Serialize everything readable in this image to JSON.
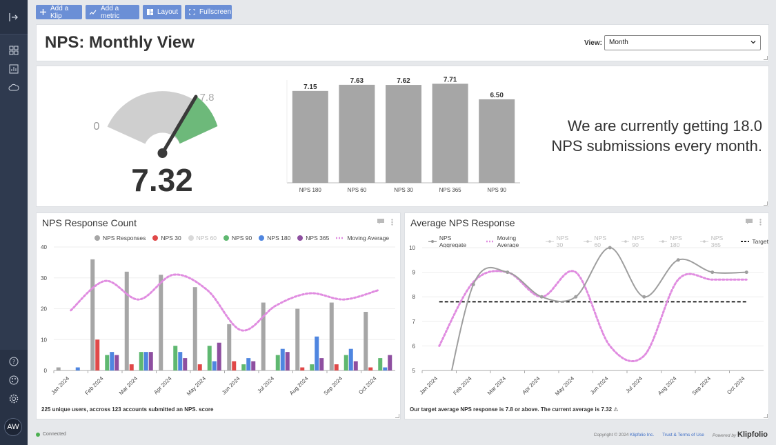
{
  "toolbar": {
    "add_klip": "Add a Klip",
    "add_metric": "Add a metric",
    "layout": "Layout",
    "fullscreen": "Fullscreen"
  },
  "sidebar": {
    "avatar_initials": "AW",
    "icons": [
      "expand-icon",
      "dashboard-icon",
      "reports-icon",
      "cloud-icon",
      "help-icon",
      "palette-icon",
      "gear-icon"
    ]
  },
  "header": {
    "title": "NPS: Monthly View",
    "view_label": "View:",
    "view_value": "Month"
  },
  "gauge": {
    "value": "7.32",
    "min_label": "0",
    "target_label": "7.8"
  },
  "kpi_text": {
    "line1": "We are currently getting 18.0",
    "line2": "NPS submissions every month."
  },
  "response_count": {
    "title": "NPS Response Count",
    "footer": "225 unique users, accross 123 accounts submitted an NPS. score"
  },
  "average_response": {
    "title": "Average NPS Response",
    "footer": "Our target average NPS response is 7.8 or above. The current average is 7.32 ⚠"
  },
  "status": {
    "text": "Connected"
  },
  "footer": {
    "copyright": "Copyright © 2024",
    "company": "Klipfolio Inc.",
    "terms": "Trust & Terms of Use",
    "powered_by": "Powered by",
    "brand": "Klipfolio"
  },
  "colors": {
    "gray": "#a6a6a6",
    "red": "#e04848",
    "lightgray": "#c9c9c9",
    "green": "#5fb870",
    "blue": "#4f86e0",
    "purple": "#8e4fa0",
    "pink": "#e08ce0",
    "target": "#222222"
  },
  "chart_data": [
    {
      "type": "bar",
      "categories": [
        "NPS 180",
        "NPS 60",
        "NPS 30",
        "NPS 365",
        "NPS 90"
      ],
      "values": [
        7.15,
        7.63,
        7.62,
        7.71,
        6.5
      ],
      "ylim": [
        0,
        8
      ]
    },
    {
      "type": "bar",
      "title": "NPS Response Count",
      "categories": [
        "Jan 2024",
        "Feb 2024",
        "Mar 2024",
        "Apr 2024",
        "May 2024",
        "Jun 2024",
        "Jul 2024",
        "Aug 2024",
        "Sep 2024",
        "Oct 2024"
      ],
      "yticks": [
        "0",
        "10",
        "20",
        "30",
        "40"
      ],
      "ylim": [
        0,
        40
      ],
      "series": [
        {
          "name": "NPS Responses",
          "values": [
            1,
            36,
            32,
            31,
            27,
            15,
            22,
            20,
            22,
            19
          ]
        },
        {
          "name": "NPS 30",
          "values": [
            0,
            10,
            2,
            0,
            2,
            3,
            0,
            1,
            2,
            1
          ]
        },
        {
          "name": "NPS 60",
          "values": [
            0,
            5,
            6,
            0,
            8,
            2,
            5,
            2,
            5,
            4
          ],
          "hidden": true
        },
        {
          "name": "NPS 90",
          "values": [
            0,
            5,
            6,
            8,
            8,
            2,
            5,
            2,
            5,
            4
          ]
        },
        {
          "name": "NPS 180",
          "values": [
            1,
            6,
            6,
            6,
            3,
            4,
            7,
            11,
            7,
            1
          ]
        },
        {
          "name": "NPS 365",
          "values": [
            0,
            5,
            6,
            4,
            9,
            3,
            6,
            4,
            3,
            5
          ]
        },
        {
          "name": "Moving Average",
          "type": "line",
          "values": [
            19.5,
            29,
            23,
            31,
            26,
            13,
            21,
            25,
            23,
            26
          ]
        }
      ]
    },
    {
      "type": "line",
      "title": "Average NPS Response",
      "categories": [
        "Jan 2024",
        "Feb 2024",
        "Mar 2024",
        "Apr 2024",
        "May 2024",
        "Jun 2024",
        "Jul 2024",
        "Aug 2024",
        "Sep 2024",
        "Oct 2024"
      ],
      "yticks": [
        "5",
        "6",
        "7",
        "8",
        "9",
        "10"
      ],
      "ylim": [
        5,
        10
      ],
      "series": [
        {
          "name": "NPS Aggregate",
          "values": [
            2.5,
            8.5,
            9,
            8,
            8,
            10,
            8,
            9.5,
            9,
            9
          ]
        },
        {
          "name": "Moving Average",
          "values": [
            6,
            8.6,
            9,
            8,
            9,
            6,
            5.6,
            8.7,
            8.7,
            8.7
          ]
        },
        {
          "name": "NPS 30",
          "hidden": true
        },
        {
          "name": "NPS 60",
          "hidden": true
        },
        {
          "name": "NPS 90",
          "hidden": true
        },
        {
          "name": "NPS 180",
          "hidden": true
        },
        {
          "name": "NPS 365",
          "hidden": true
        },
        {
          "name": "Target",
          "values": [
            7.8,
            7.8,
            7.8,
            7.8,
            7.8,
            7.8,
            7.8,
            7.8,
            7.8,
            7.8
          ]
        }
      ]
    }
  ]
}
